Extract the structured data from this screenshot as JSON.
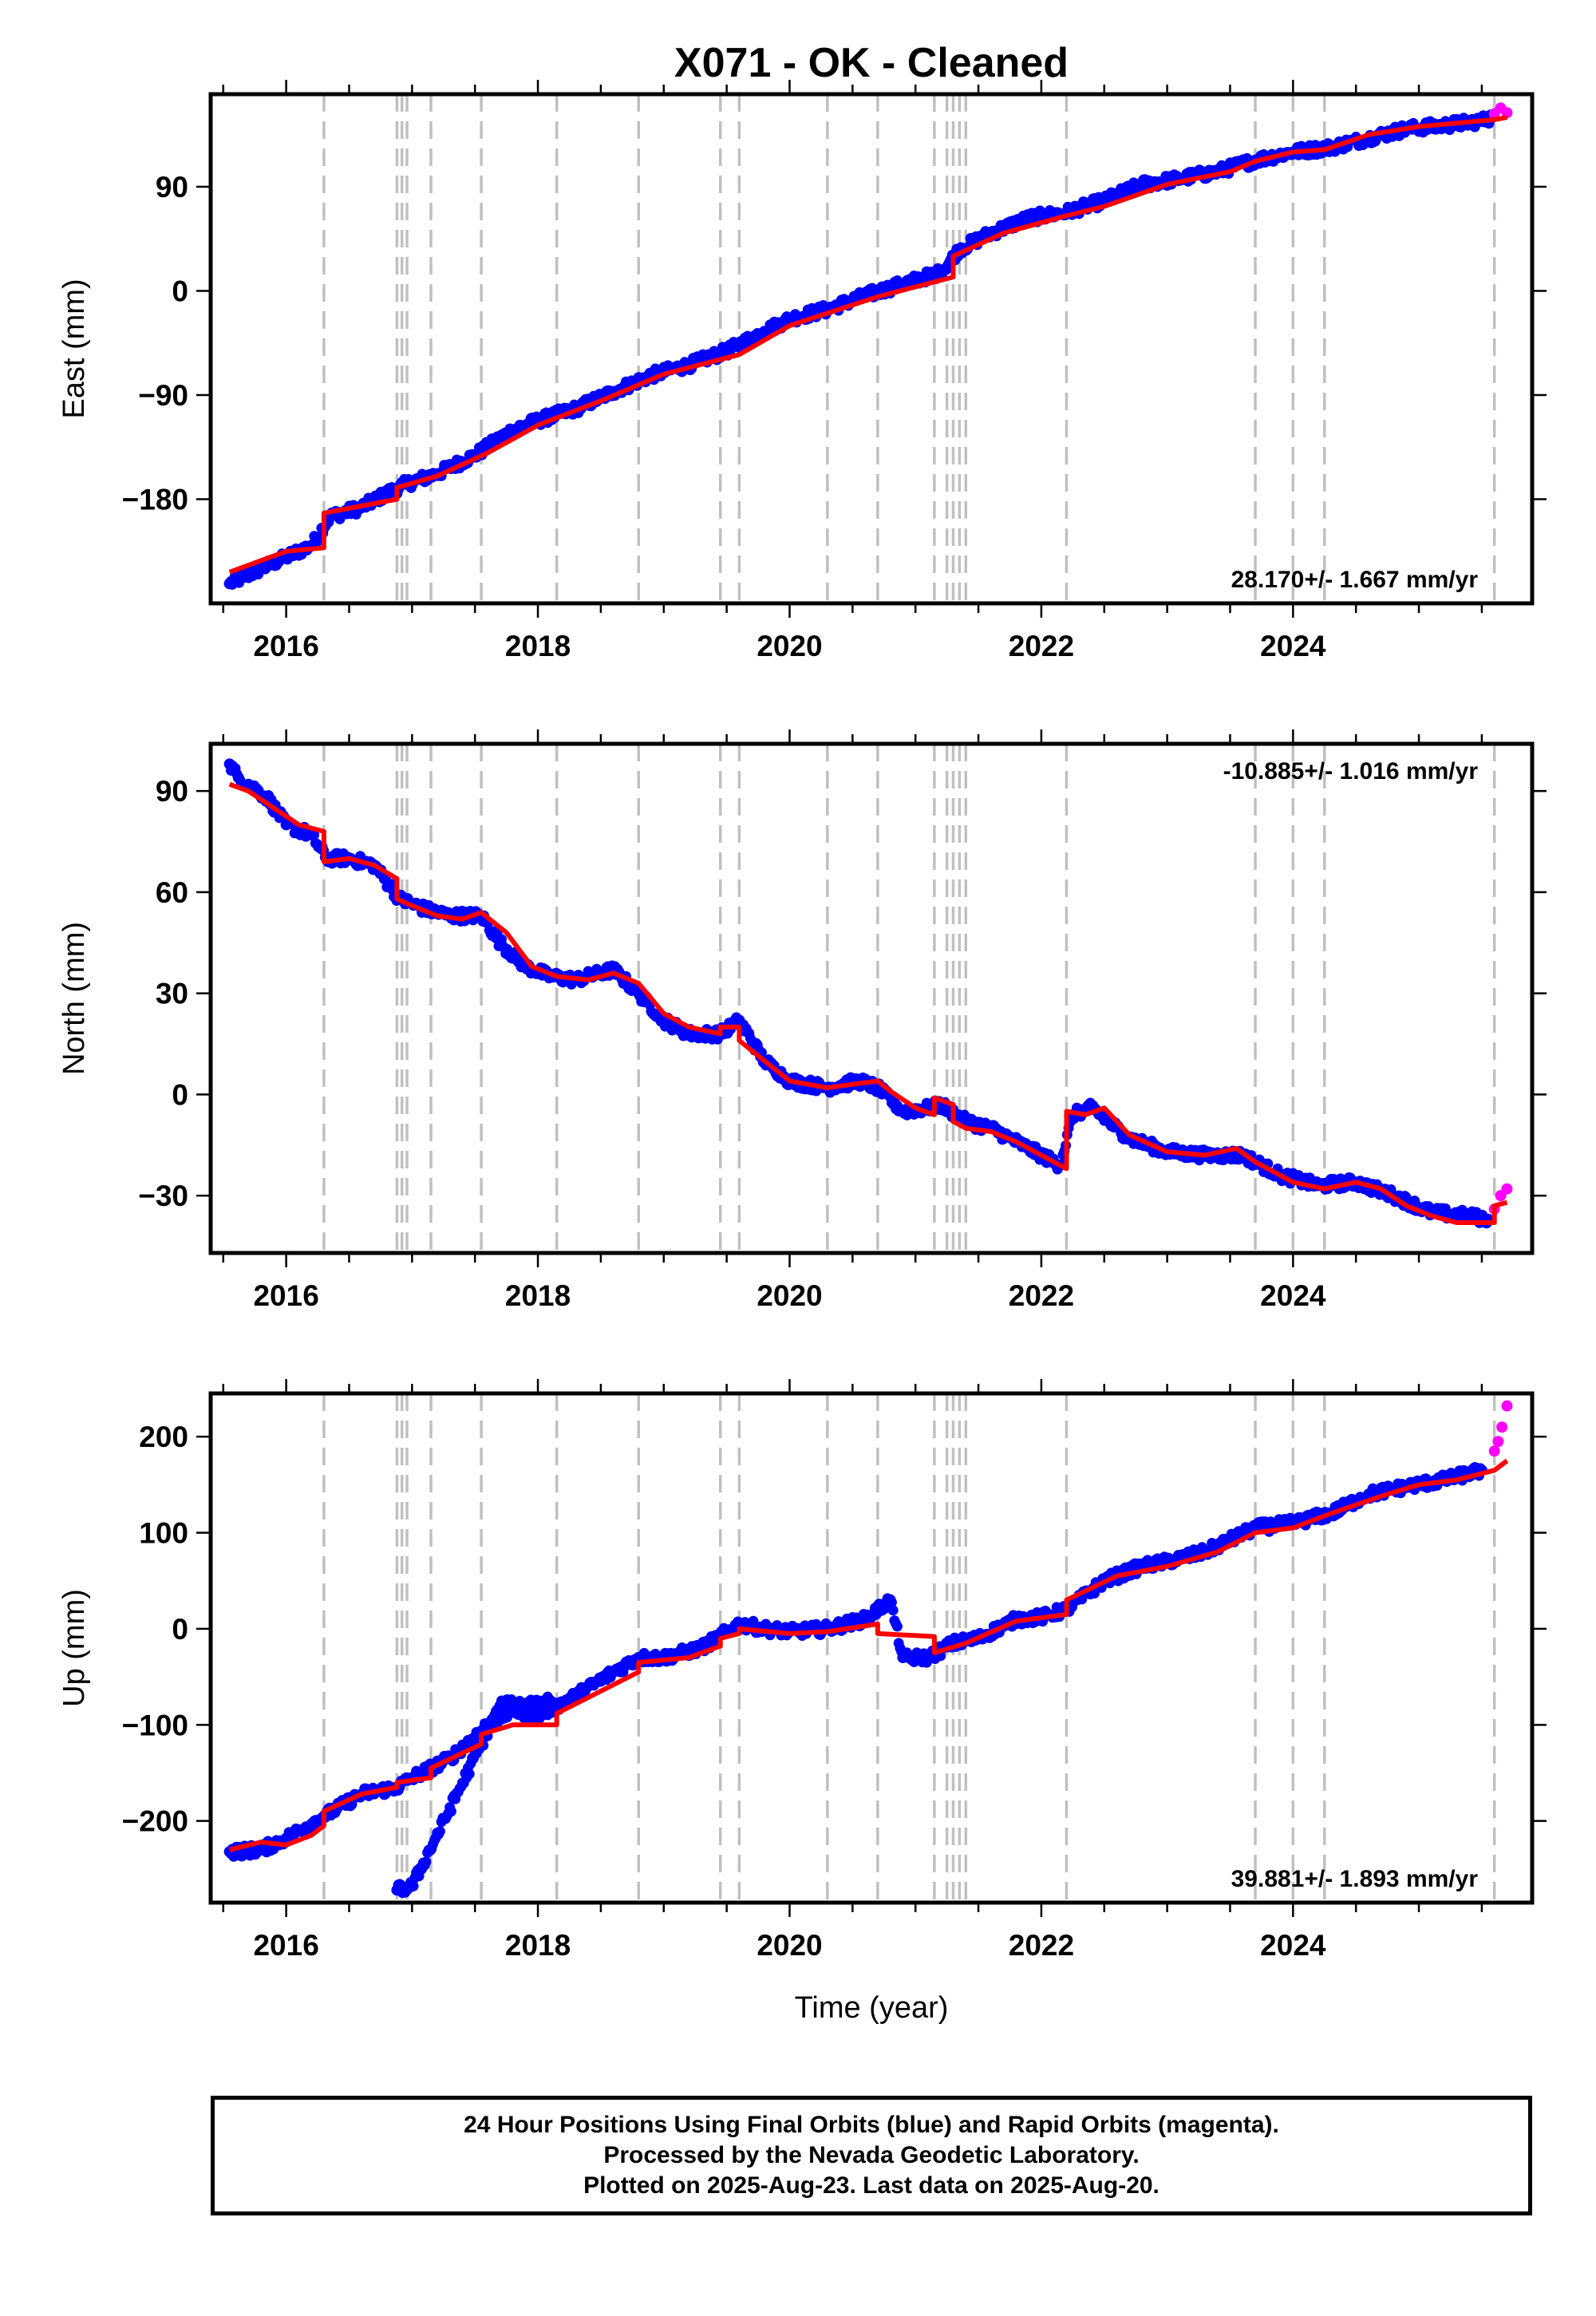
{
  "title": "X071  - OK - Cleaned",
  "footer": {
    "line1": "24 Hour Positions Using Final Orbits (blue) and Rapid Orbits (magenta).",
    "line2": "Processed by the Nevada Geodetic Laboratory.",
    "line3": "Plotted on 2025-Aug-23. Last data on 2025-Aug-20."
  },
  "colors": {
    "final_orbits": "#0000ff",
    "rapid_orbits": "#ff00ff",
    "model": "#ff0000",
    "breaks": "#c0c0c0"
  },
  "x_axis": {
    "label": "Time (year)",
    "range": [
      2015.4,
      2025.9
    ],
    "ticks": [
      2016,
      2018,
      2020,
      2022,
      2024
    ],
    "minor_step": 0.5
  },
  "break_years": [
    2016.3,
    2016.88,
    2016.92,
    2016.96,
    2017.15,
    2017.55,
    2018.15,
    2018.8,
    2019.45,
    2019.6,
    2020.3,
    2020.7,
    2021.15,
    2021.25,
    2021.3,
    2021.35,
    2021.4,
    2022.2,
    2023.7,
    2024.0,
    2024.25,
    2025.6
  ],
  "chart_data": [
    {
      "type": "scatter",
      "component": "east",
      "ylabel": "East (mm)",
      "ylim": [
        -270,
        170
      ],
      "yticks": [
        -180,
        -90,
        0,
        90
      ],
      "rate": "28.170+/- 1.667 mm/yr",
      "rate_position": "bottom-right",
      "series": [
        {
          "name": "Final Orbits (blue)",
          "style": "points",
          "x": [
            2015.55,
            2015.8,
            2016.0,
            2016.2,
            2016.35,
            2016.6,
            2016.85,
            2016.95,
            2017.2,
            2017.5,
            2017.8,
            2018.0,
            2018.3,
            2018.6,
            2018.9,
            2019.2,
            2019.5,
            2019.8,
            2020.0,
            2020.3,
            2020.6,
            2020.9,
            2021.2,
            2021.35,
            2021.6,
            2021.9,
            2022.2,
            2022.5,
            2022.8,
            2023.1,
            2023.4,
            2023.7,
            2024.0,
            2024.3,
            2024.6,
            2024.9,
            2025.2,
            2025.5,
            2025.58
          ],
          "y": [
            -253,
            -240,
            -230,
            -220,
            -195,
            -187,
            -172,
            -167,
            -158,
            -142,
            -120,
            -112,
            -102,
            -87,
            -73,
            -64,
            -52,
            -35,
            -24,
            -16,
            -4,
            6,
            16,
            36,
            50,
            63,
            68,
            78,
            92,
            97,
            103,
            113,
            120,
            124,
            132,
            140,
            143,
            147,
            150
          ]
        },
        {
          "name": "Rapid Orbits (magenta)",
          "style": "points",
          "x": [
            2025.6,
            2025.65,
            2025.7
          ],
          "y": [
            153,
            158,
            154
          ]
        },
        {
          "name": "Model",
          "style": "line",
          "x": [
            2015.55,
            2016.0,
            2016.3,
            2016.3,
            2016.88,
            2016.88,
            2017.2,
            2017.6,
            2018.0,
            2018.5,
            2019.0,
            2019.6,
            2020.0,
            2020.7,
            2021.3,
            2021.3,
            2021.7,
            2022.2,
            2022.5,
            2023.0,
            2023.5,
            2023.7,
            2024.0,
            2024.25,
            2024.6,
            2025.0,
            2025.6,
            2025.7
          ],
          "y": [
            -243,
            -225,
            -222,
            -192,
            -180,
            -170,
            -160,
            -140,
            -116,
            -95,
            -72,
            -55,
            -30,
            -5,
            12,
            30,
            50,
            65,
            73,
            92,
            103,
            112,
            120,
            122,
            135,
            142,
            148,
            150
          ]
        }
      ]
    },
    {
      "type": "scatter",
      "component": "north",
      "ylabel": "North (mm)",
      "ylim": [
        -47,
        104
      ],
      "yticks": [
        -30,
        0,
        30,
        60,
        90
      ],
      "rate": "-10.885+/- 1.016 mm/yr",
      "rate_position": "top-right",
      "series": [
        {
          "name": "Final Orbits (blue)",
          "style": "points",
          "x": [
            2015.55,
            2015.62,
            2015.7,
            2015.85,
            2016.0,
            2016.2,
            2016.32,
            2016.5,
            2016.7,
            2016.9,
            2017.1,
            2017.3,
            2017.55,
            2017.7,
            2017.9,
            2018.1,
            2018.3,
            2018.6,
            2018.8,
            2019.0,
            2019.2,
            2019.45,
            2019.6,
            2019.8,
            2020.0,
            2020.3,
            2020.55,
            2020.7,
            2020.9,
            2021.1,
            2021.2,
            2021.4,
            2021.6,
            2021.9,
            2022.15,
            2022.25,
            2022.4,
            2022.7,
            2023.0,
            2023.3,
            2023.6,
            2023.9,
            2024.2,
            2024.5,
            2024.8,
            2025.1,
            2025.4,
            2025.55
          ],
          "y": [
            98,
            94,
            92,
            88,
            80,
            77,
            70,
            70,
            68,
            58,
            55,
            53,
            53,
            45,
            38,
            35,
            34,
            37,
            30,
            22,
            18,
            18,
            22,
            10,
            4,
            2,
            4,
            2,
            -5,
            -4,
            -3,
            -8,
            -10,
            -16,
            -21,
            -6,
            -4,
            -13,
            -17,
            -18,
            -18,
            -24,
            -27,
            -26,
            -30,
            -35,
            -36,
            -37
          ]
        },
        {
          "name": "Rapid Orbits (magenta)",
          "style": "points",
          "x": [
            2025.6,
            2025.65,
            2025.7
          ],
          "y": [
            -34,
            -30,
            -28
          ]
        },
        {
          "name": "Model",
          "style": "line",
          "x": [
            2015.55,
            2015.7,
            2015.9,
            2016.1,
            2016.3,
            2016.3,
            2016.5,
            2016.7,
            2016.88,
            2016.88,
            2017.0,
            2017.2,
            2017.4,
            2017.55,
            2017.75,
            2017.95,
            2018.15,
            2018.4,
            2018.6,
            2018.8,
            2019.0,
            2019.2,
            2019.45,
            2019.45,
            2019.6,
            2019.6,
            2019.8,
            2020.0,
            2020.3,
            2020.5,
            2020.7,
            2020.8,
            2021.0,
            2021.15,
            2021.15,
            2021.3,
            2021.3,
            2021.4,
            2021.6,
            2021.8,
            2022.0,
            2022.2,
            2022.2,
            2022.35,
            2022.5,
            2022.7,
            2023.0,
            2023.3,
            2023.55,
            2023.7,
            2024.0,
            2024.25,
            2024.5,
            2024.7,
            2024.9,
            2025.1,
            2025.3,
            2025.6,
            2025.6,
            2025.7
          ],
          "y": [
            92,
            90,
            85,
            80,
            78,
            69,
            70,
            68,
            64,
            58,
            56,
            53,
            52,
            54,
            48,
            38,
            35,
            34,
            36,
            33,
            24,
            20,
            18,
            20,
            20,
            16,
            10,
            4,
            2,
            3,
            4,
            1,
            -4,
            -6,
            -1,
            -3,
            -8,
            -10,
            -11,
            -14,
            -18,
            -22,
            -5,
            -6,
            -4,
            -12,
            -17,
            -18,
            -16,
            -20,
            -26,
            -28,
            -26,
            -28,
            -33,
            -36,
            -38,
            -38,
            -33,
            -32
          ]
        }
      ]
    },
    {
      "type": "scatter",
      "component": "up",
      "ylabel": "Up (mm)",
      "ylim": [
        -285,
        245
      ],
      "yticks": [
        -200,
        -100,
        0,
        100,
        200
      ],
      "rate": "39.881+/- 1.893 mm/yr",
      "rate_position": "bottom-right",
      "series": [
        {
          "name": "Final Orbits (blue)",
          "style": "points",
          "x": [
            2015.55,
            2015.8,
            2016.0,
            2016.3,
            2016.6,
            2016.88,
            2017.0,
            2017.3,
            2017.6,
            2017.8,
            2018.0,
            2018.3,
            2018.6,
            2018.8,
            2019.0,
            2019.3,
            2019.6,
            2019.8,
            2020.0,
            2020.3,
            2020.6,
            2020.8,
            2020.9,
            2021.1,
            2021.3,
            2021.5,
            2021.8,
            2022.0,
            2022.2,
            2022.5,
            2022.8,
            2023.0,
            2023.3,
            2023.7,
            2024.0,
            2024.3,
            2024.6,
            2024.9,
            2025.2,
            2025.5,
            2016.88,
            2017.0,
            2017.7,
            2018.1
          ],
          "y": [
            -232,
            -230,
            -218,
            -195,
            -172,
            -165,
            -155,
            -135,
            -100,
            -85,
            -90,
            -70,
            -45,
            -30,
            -30,
            -20,
            5,
            0,
            -3,
            0,
            10,
            30,
            -30,
            -30,
            -15,
            -10,
            10,
            12,
            20,
            50,
            65,
            70,
            80,
            105,
            110,
            120,
            140,
            148,
            155,
            165,
            -272,
            -268,
            -80,
            -75
          ]
        },
        {
          "name": "Rapid Orbits (magenta)",
          "style": "points",
          "x": [
            2025.6,
            2025.63,
            2025.66,
            2025.7
          ],
          "y": [
            185,
            195,
            210,
            232
          ]
        },
        {
          "name": "Model",
          "style": "line",
          "x": [
            2015.55,
            2015.8,
            2016.0,
            2016.2,
            2016.3,
            2016.3,
            2016.6,
            2016.88,
            2016.88,
            2017.15,
            2017.15,
            2017.55,
            2017.55,
            2017.8,
            2018.15,
            2018.15,
            2018.8,
            2018.8,
            2019.2,
            2019.45,
            2019.45,
            2019.6,
            2019.6,
            2020.0,
            2020.3,
            2020.7,
            2020.7,
            2021.15,
            2021.15,
            2021.4,
            2021.8,
            2022.2,
            2022.2,
            2022.6,
            2023.0,
            2023.4,
            2023.7,
            2024.0,
            2024.3,
            2024.7,
            2025.0,
            2025.3,
            2025.6,
            2025.7
          ],
          "y": [
            -230,
            -222,
            -225,
            -215,
            -205,
            -190,
            -172,
            -165,
            -160,
            -155,
            -145,
            -120,
            -110,
            -100,
            -100,
            -88,
            -45,
            -35,
            -30,
            -18,
            -10,
            -5,
            0,
            -5,
            -3,
            5,
            -5,
            -8,
            -25,
            -15,
            8,
            15,
            30,
            55,
            65,
            80,
            100,
            105,
            120,
            138,
            150,
            155,
            165,
            175
          ]
        }
      ]
    }
  ]
}
